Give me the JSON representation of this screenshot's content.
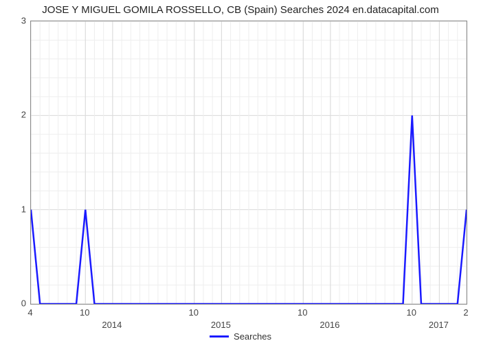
{
  "title": "JOSE Y MIGUEL GOMILA ROSSELLO, CB (Spain) Searches 2024 en.datacapital.com",
  "chart": {
    "type": "line",
    "background_color": "#ffffff",
    "plot_border_color": "#8a8a8a",
    "grid_color": "#d9d9d9",
    "grid_minor_color": "#eeeeee",
    "title_fontsize": 15,
    "title_color": "#222222",
    "tick_fontsize": 13,
    "tick_color": "#444444",
    "y": {
      "min": 0,
      "max": 3,
      "ticks": [
        0,
        1,
        2,
        3
      ],
      "minor_divisions": 5
    },
    "x": {
      "min_month_index": 0,
      "max_month_index": 48,
      "month_ticks": [
        {
          "idx": 0,
          "label": "4"
        },
        {
          "idx": 6,
          "label": "10"
        },
        {
          "idx": 18,
          "label": "10"
        },
        {
          "idx": 30,
          "label": "10"
        },
        {
          "idx": 42,
          "label": "10"
        },
        {
          "idx": 48,
          "label": "2"
        }
      ],
      "year_labels_at": [
        {
          "idx": 9,
          "label": "2014"
        },
        {
          "idx": 21,
          "label": "2015"
        },
        {
          "idx": 33,
          "label": "2016"
        },
        {
          "idx": 45,
          "label": "2017"
        }
      ],
      "minor_every_month": true
    },
    "series": [
      {
        "name": "Searches",
        "color": "#1a1aff",
        "line_width": 2.5,
        "points": [
          {
            "x": 0,
            "y": 1
          },
          {
            "x": 1,
            "y": 0
          },
          {
            "x": 5,
            "y": 0
          },
          {
            "x": 6,
            "y": 1
          },
          {
            "x": 7,
            "y": 0
          },
          {
            "x": 41,
            "y": 0
          },
          {
            "x": 42,
            "y": 2
          },
          {
            "x": 43,
            "y": 0
          },
          {
            "x": 47,
            "y": 0
          },
          {
            "x": 48,
            "y": 1
          }
        ]
      }
    ],
    "legend": {
      "label": "Searches",
      "color": "#1a1aff",
      "line_width": 3
    }
  }
}
